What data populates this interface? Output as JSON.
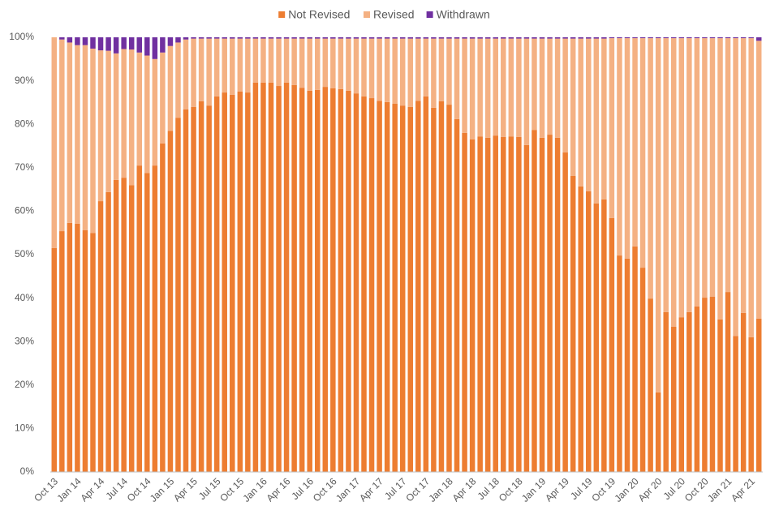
{
  "chart_data": {
    "type": "stacked_bar",
    "categories": [
      "Oct 13",
      null,
      null,
      "Jan 14",
      null,
      null,
      "Apr 14",
      null,
      null,
      "Jul 14",
      null,
      null,
      "Oct 14",
      null,
      null,
      "Jan 15",
      null,
      null,
      "Apr 15",
      null,
      null,
      "Jul 15",
      null,
      null,
      "Oct 15",
      null,
      null,
      "Jan 16",
      null,
      null,
      "Apr 16",
      null,
      null,
      "Jul 16",
      null,
      null,
      "Oct 16",
      null,
      null,
      "Jan 17",
      null,
      null,
      "Apr 17",
      null,
      null,
      "Jul 17",
      null,
      null,
      "Oct 17",
      null,
      null,
      "Jan 18",
      null,
      null,
      "Apr 18",
      null,
      null,
      "Jul 18",
      null,
      null,
      "Oct 18",
      null,
      null,
      "Jan 19",
      null,
      null,
      "Apr 19",
      null,
      null,
      "Jul 19",
      null,
      null,
      "Oct 19",
      null,
      null,
      "Jan 20",
      null,
      null,
      "Apr 20",
      null,
      null,
      "Jul 20",
      null,
      null,
      "Oct 20",
      null,
      null,
      "Jan 21",
      null,
      null,
      "Apr 21",
      null
    ],
    "series": [
      {
        "name": "Not Revised",
        "color": "#ed7d31",
        "values": [
          51.5,
          55.4,
          57.3,
          57.1,
          55.6,
          55.0,
          62.3,
          64.4,
          67.2,
          67.7,
          66.0,
          70.5,
          68.8,
          70.5,
          75.6,
          78.5,
          81.5,
          83.4,
          84.0,
          85.3,
          84.3,
          86.4,
          87.3,
          86.8,
          87.5,
          87.3,
          89.6,
          89.6,
          89.6,
          88.8,
          89.6,
          89.0,
          88.4,
          87.7,
          87.9,
          88.6,
          88.3,
          88.1,
          87.7,
          87.1,
          86.4,
          86.0,
          85.4,
          85.1,
          84.7,
          84.3,
          84.0,
          85.4,
          86.4,
          83.8,
          85.3,
          84.5,
          81.2,
          78.0,
          76.5,
          77.2,
          76.9,
          77.4,
          77.1,
          77.2,
          77.1,
          75.2,
          78.7,
          76.9,
          77.6,
          76.9,
          73.5,
          68.1,
          65.7,
          64.6,
          61.8,
          62.7,
          58.4,
          49.8,
          49.1,
          51.9,
          47.0,
          39.9,
          18.3,
          36.8,
          33.4,
          35.6,
          36.8,
          38.1,
          40.1,
          40.3,
          35.1,
          41.4,
          31.3,
          36.6,
          31.0,
          35.3
        ]
      },
      {
        "name": "Revised",
        "color": "#f4b183",
        "values": [
          48.5,
          44.1,
          41.5,
          41.1,
          42.6,
          42.4,
          34.7,
          32.5,
          29.1,
          29.6,
          31.2,
          26.0,
          27.0,
          24.5,
          20.9,
          19.5,
          17.3,
          16.1,
          15.7,
          14.4,
          15.4,
          13.3,
          12.4,
          12.9,
          12.2,
          12.4,
          10.1,
          10.1,
          10.1,
          10.9,
          10.1,
          10.7,
          11.3,
          12.0,
          11.8,
          11.1,
          11.4,
          11.6,
          12.0,
          12.6,
          13.3,
          13.7,
          14.3,
          14.6,
          15.0,
          15.4,
          15.7,
          14.3,
          13.3,
          15.9,
          14.4,
          15.2,
          18.5,
          21.7,
          23.2,
          22.5,
          22.8,
          22.3,
          22.6,
          22.5,
          22.6,
          24.5,
          21.0,
          22.8,
          22.1,
          22.8,
          26.2,
          31.6,
          34.0,
          35.1,
          37.9,
          37.0,
          41.4,
          50.0,
          50.7,
          47.9,
          52.8,
          59.9,
          81.5,
          63.0,
          66.4,
          64.2,
          63.0,
          61.7,
          59.7,
          59.5,
          64.7,
          58.4,
          68.5,
          63.2,
          68.8,
          63.9
        ]
      },
      {
        "name": "Withdrawn",
        "color": "#7030a0",
        "values": [
          0,
          0.5,
          1.2,
          1.8,
          1.8,
          2.6,
          3.0,
          3.1,
          3.7,
          2.7,
          2.8,
          3.5,
          4.2,
          5.0,
          3.5,
          2.0,
          1.2,
          0.5,
          0.3,
          0.3,
          0.3,
          0.3,
          0.3,
          0.3,
          0.3,
          0.3,
          0.3,
          0.3,
          0.3,
          0.3,
          0.3,
          0.3,
          0.3,
          0.3,
          0.3,
          0.3,
          0.3,
          0.3,
          0.3,
          0.3,
          0.3,
          0.3,
          0.3,
          0.3,
          0.3,
          0.3,
          0.3,
          0.3,
          0.3,
          0.3,
          0.3,
          0.3,
          0.3,
          0.3,
          0.3,
          0.3,
          0.3,
          0.3,
          0.3,
          0.3,
          0.3,
          0.3,
          0.3,
          0.3,
          0.3,
          0.3,
          0.3,
          0.3,
          0.3,
          0.3,
          0.3,
          0.3,
          0.2,
          0.2,
          0.2,
          0.2,
          0.2,
          0.2,
          0.2,
          0.2,
          0.2,
          0.2,
          0.2,
          0.2,
          0.2,
          0.2,
          0.2,
          0.2,
          0.2,
          0.2,
          0.2,
          0.8
        ]
      }
    ],
    "ylim": [
      0,
      100
    ],
    "yticks": [
      {
        "value": 0,
        "label": "0%"
      },
      {
        "value": 10,
        "label": "10%"
      },
      {
        "value": 20,
        "label": "20%"
      },
      {
        "value": 30,
        "label": "30%"
      },
      {
        "value": 40,
        "label": "40%"
      },
      {
        "value": 50,
        "label": "50%"
      },
      {
        "value": 60,
        "label": "60%"
      },
      {
        "value": 70,
        "label": "70%"
      },
      {
        "value": 80,
        "label": "80%"
      },
      {
        "value": 90,
        "label": "90%"
      },
      {
        "value": 100,
        "label": "100%"
      }
    ],
    "grid": false,
    "legend": "top"
  }
}
